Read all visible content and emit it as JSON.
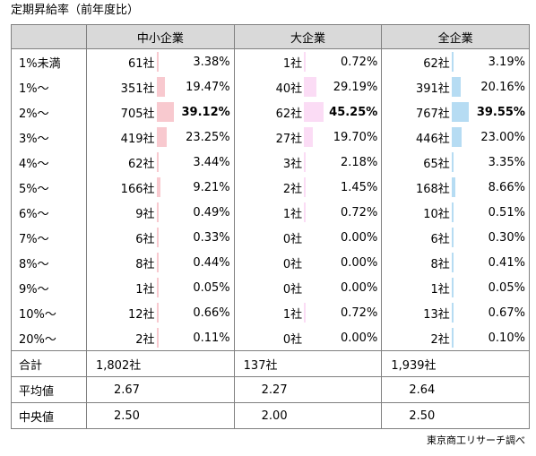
{
  "title": "定期昇給率（前年度比）",
  "source": "東京商工リサーチ調べ",
  "groups": [
    "中小企業",
    "大企業",
    "全企業"
  ],
  "colors": {
    "sme": "#f8c9cf",
    "large": "#fbdcf5",
    "all": "#b6dcf3",
    "border": "#808080",
    "header": "#d9d9d9"
  },
  "chart_data": {
    "type": "table",
    "title": "定期昇給率（前年度比）",
    "columns": [
      "中小企業",
      "大企業",
      "全企業"
    ],
    "rows": [
      {
        "label": "1%未満",
        "sme": {
          "count": "61社",
          "pct": "3.38%",
          "v": 3.38
        },
        "large": {
          "count": "1社",
          "pct": "0.72%",
          "v": 0.72
        },
        "all": {
          "count": "62社",
          "pct": "3.19%",
          "v": 3.19
        }
      },
      {
        "label": "1%～",
        "sme": {
          "count": "351社",
          "pct": "19.47%",
          "v": 19.47
        },
        "large": {
          "count": "40社",
          "pct": "29.19%",
          "v": 29.19
        },
        "all": {
          "count": "391社",
          "pct": "20.16%",
          "v": 20.16
        }
      },
      {
        "label": "2%～",
        "bold": true,
        "sme": {
          "count": "705社",
          "pct": "39.12%",
          "v": 39.12
        },
        "large": {
          "count": "62社",
          "pct": "45.25%",
          "v": 45.25
        },
        "all": {
          "count": "767社",
          "pct": "39.55%",
          "v": 39.55
        }
      },
      {
        "label": "3%～",
        "sme": {
          "count": "419社",
          "pct": "23.25%",
          "v": 23.25
        },
        "large": {
          "count": "27社",
          "pct": "19.70%",
          "v": 19.7
        },
        "all": {
          "count": "446社",
          "pct": "23.00%",
          "v": 23.0
        }
      },
      {
        "label": "4%～",
        "sme": {
          "count": "62社",
          "pct": "3.44%",
          "v": 3.44
        },
        "large": {
          "count": "3社",
          "pct": "2.18%",
          "v": 2.18
        },
        "all": {
          "count": "65社",
          "pct": "3.35%",
          "v": 3.35
        }
      },
      {
        "label": "5%～",
        "sme": {
          "count": "166社",
          "pct": "9.21%",
          "v": 9.21
        },
        "large": {
          "count": "2社",
          "pct": "1.45%",
          "v": 1.45
        },
        "all": {
          "count": "168社",
          "pct": "8.66%",
          "v": 8.66
        }
      },
      {
        "label": "6%～",
        "sme": {
          "count": "9社",
          "pct": "0.49%",
          "v": 0.49
        },
        "large": {
          "count": "1社",
          "pct": "0.72%",
          "v": 0.72
        },
        "all": {
          "count": "10社",
          "pct": "0.51%",
          "v": 0.51
        }
      },
      {
        "label": "7%～",
        "sme": {
          "count": "6社",
          "pct": "0.33%",
          "v": 0.33
        },
        "large": {
          "count": "0社",
          "pct": "0.00%",
          "v": 0
        },
        "all": {
          "count": "6社",
          "pct": "0.30%",
          "v": 0.3
        }
      },
      {
        "label": "8%～",
        "sme": {
          "count": "8社",
          "pct": "0.44%",
          "v": 0.44
        },
        "large": {
          "count": "0社",
          "pct": "0.00%",
          "v": 0
        },
        "all": {
          "count": "8社",
          "pct": "0.41%",
          "v": 0.41
        }
      },
      {
        "label": "9%～",
        "sme": {
          "count": "1社",
          "pct": "0.05%",
          "v": 0.05
        },
        "large": {
          "count": "0社",
          "pct": "0.00%",
          "v": 0
        },
        "all": {
          "count": "1社",
          "pct": "0.05%",
          "v": 0.05
        }
      },
      {
        "label": "10%～",
        "sme": {
          "count": "12社",
          "pct": "0.66%",
          "v": 0.66
        },
        "large": {
          "count": "1社",
          "pct": "0.72%",
          "v": 0.72
        },
        "all": {
          "count": "13社",
          "pct": "0.67%",
          "v": 0.67
        }
      },
      {
        "label": "20%～",
        "sme": {
          "count": "2社",
          "pct": "0.11%",
          "v": 0.11
        },
        "large": {
          "count": "0社",
          "pct": "0.00%",
          "v": 0
        },
        "all": {
          "count": "2社",
          "pct": "0.10%",
          "v": 0.1
        }
      }
    ],
    "summary": [
      {
        "label": "合計",
        "sme": "1,802社",
        "large": "137社",
        "all": "1,939社"
      },
      {
        "label": "平均値",
        "sme": "2.67",
        "large": "2.27",
        "all": "2.64"
      },
      {
        "label": "中央値",
        "sme": "2.50",
        "large": "2.00",
        "all": "2.50"
      }
    ]
  }
}
